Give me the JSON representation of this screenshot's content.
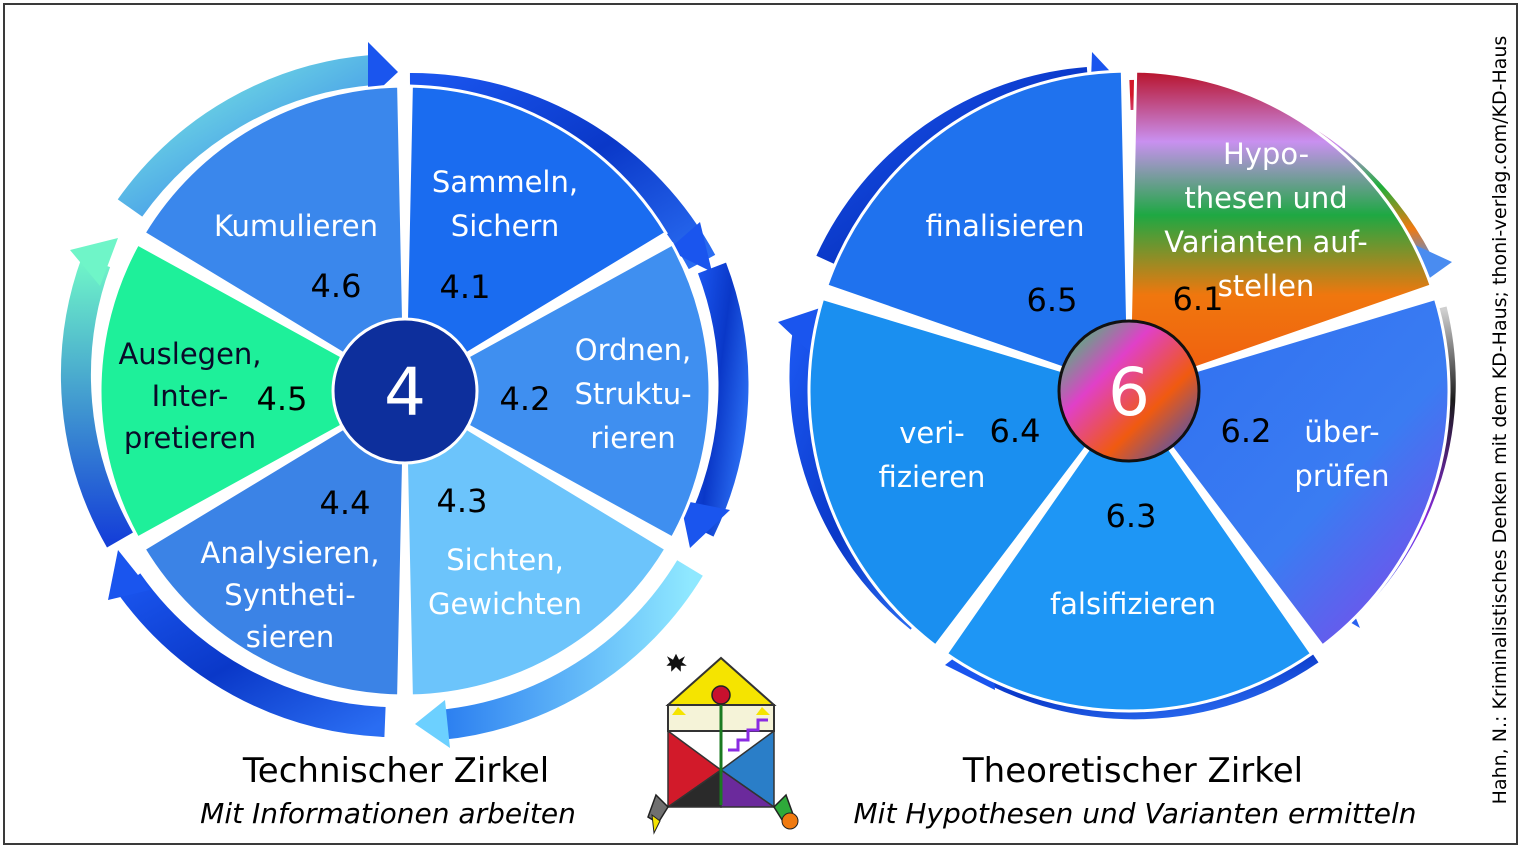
{
  "credit": "Hahn, N.: Kriminalistisches Denken mit dem KD-Haus; thoni-verlag.com/KD-Haus",
  "technical": {
    "hub": "4",
    "title": "Technischer Zirkel",
    "subtitle": "Mit Informationen arbeiten",
    "segments": [
      {
        "num": "4.1",
        "lines": [
          "Sammeln,",
          "Sichern"
        ],
        "color": "#1a6cf0"
      },
      {
        "num": "4.2",
        "lines": [
          "Ordnen,",
          "Struktu-",
          "rieren"
        ],
        "color": "#3f8ff0"
      },
      {
        "num": "4.3",
        "lines": [
          "Sichten,",
          "Gewichten"
        ],
        "color": "#6cc4fb"
      },
      {
        "num": "4.4",
        "lines": [
          "Analysieren,",
          "Syntheti-",
          "sieren"
        ],
        "color": "#3b83e6"
      },
      {
        "num": "4.5",
        "lines": [
          "Auslegen,",
          "Inter-",
          "pretieren"
        ],
        "color": "#1ef09a"
      },
      {
        "num": "4.6",
        "lines": [
          "Kumulieren"
        ],
        "color": "#3a87ec"
      }
    ]
  },
  "theoretical": {
    "hub": "6",
    "title": "Theoretischer Zirkel",
    "subtitle": "Mit Hypothesen und Varianten ermitteln",
    "segments": [
      {
        "num": "6.1",
        "lines": [
          "Hypo-",
          "thesen und",
          "Varianten auf-",
          "stellen"
        ],
        "color": "rainbow"
      },
      {
        "num": "6.2",
        "lines": [
          "über-",
          "prüfen"
        ],
        "color": "#3d7cf0"
      },
      {
        "num": "6.3",
        "lines": [
          "falsifizieren"
        ],
        "color": "#1e96f5"
      },
      {
        "num": "6.4",
        "lines": [
          "veri-",
          "fizieren"
        ],
        "color": "#1a8ff0"
      },
      {
        "num": "6.5",
        "lines": [
          "finalisieren"
        ],
        "color": "#1f72ee"
      }
    ]
  },
  "colors": {
    "hub_technical": "#0d2f9c",
    "arrow_dark": "#0b3fd6",
    "arrow_light": "#4ab0ff",
    "frame": "#3a3a3a"
  },
  "logo": {
    "icon": "kd-haus-logo-icon"
  }
}
